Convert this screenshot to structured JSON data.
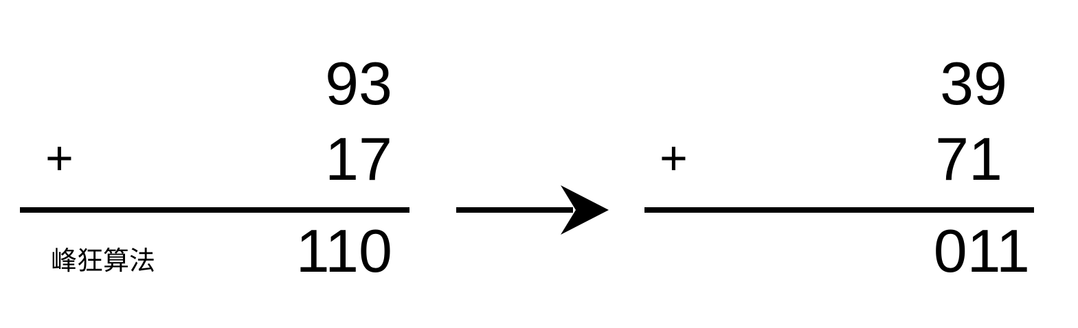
{
  "left": {
    "top_number": "93",
    "bottom_number": "17",
    "operator": "+",
    "result": "110"
  },
  "right": {
    "top_number": "39",
    "bottom_number": "71",
    "operator": "+",
    "result": "011"
  },
  "watermark": "峰狂算法",
  "icons": {
    "arrow": "arrow-right-icon"
  },
  "colors": {
    "ink": "#000000",
    "background": "#ffffff"
  }
}
